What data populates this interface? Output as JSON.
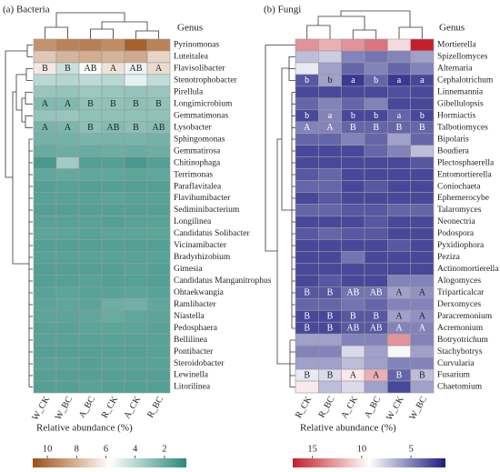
{
  "chart_data": [
    {
      "type": "heatmap",
      "title": "(a) Bacteria",
      "y_label": "Genus",
      "columns": [
        "W_CK",
        "W_BC",
        "A_BC",
        "R_CK",
        "A_CK",
        "R_BC"
      ],
      "rows": [
        "Pyrinomonas",
        "Luteitalea",
        "Flavisolibacter",
        "Stenotrophobacter",
        "Pirellula",
        "Longimicrobium",
        "Gemmatimonas",
        "Lysobacter",
        "Sphingomonas",
        "Gemmatirosa",
        "Chitinophaga",
        "Terrimonas",
        "Paraflavitalea",
        "Flavihumibacter",
        "Sediminibacterium",
        "Longilinea",
        "Candidatus Solibacter",
        "Vicinamibacter",
        "Bradyrhizobium",
        "Gimesia",
        "Candidatus Manganitrophus",
        "Ohtaekwangia",
        "Ramlibacter",
        "Niastella",
        "Pedosphaera",
        "Bellilinea",
        "Pontibacter",
        "Steroidobacter",
        "Lewinella",
        "Litorilinea"
      ],
      "values": [
        [
          9,
          9.5,
          9.6,
          9.2,
          10.5,
          9.5
        ],
        [
          7.4,
          8,
          8.2,
          8,
          8.3,
          7
        ],
        [
          6.4,
          4.4,
          5.6,
          6.6,
          5.3,
          6.8
        ],
        [
          4,
          3.9,
          4.1,
          4,
          5.1,
          4.2
        ],
        [
          3.2,
          3.1,
          3.3,
          3.2,
          3.1,
          3.2
        ],
        [
          2.6,
          2.6,
          3,
          3,
          2.9,
          3
        ],
        [
          3.1,
          3.2,
          3,
          3,
          3,
          3
        ],
        [
          2.4,
          2.5,
          2.9,
          2.7,
          2.9,
          2.8
        ],
        [
          2.3,
          2.3,
          2.4,
          2.4,
          2.4,
          2.3
        ],
        [
          2,
          2.1,
          2,
          2.1,
          2,
          2.1
        ],
        [
          1.2,
          3.4,
          1.5,
          1.5,
          1.2,
          1.5
        ],
        [
          1.8,
          1.9,
          1.8,
          1.8,
          1.7,
          1.8
        ],
        [
          1.5,
          1.6,
          1.5,
          1.5,
          1.5,
          1.5
        ],
        [
          1.6,
          1.6,
          1.6,
          1.7,
          1.6,
          1.6
        ],
        [
          1.5,
          1.5,
          1.5,
          1.5,
          1.5,
          1.5
        ],
        [
          1.6,
          1.6,
          1.6,
          1.5,
          1.6,
          1.6
        ],
        [
          1.7,
          1.7,
          1.6,
          1.7,
          1.7,
          1.7
        ],
        [
          1.5,
          1.5,
          1.5,
          1.5,
          1.5,
          1.5
        ],
        [
          1.6,
          1.6,
          1.6,
          1.6,
          1.6,
          1.6
        ],
        [
          1.5,
          1.5,
          1.5,
          1.5,
          1.6,
          1.5
        ],
        [
          1.5,
          1.5,
          1.6,
          1.5,
          1.5,
          1.5
        ],
        [
          1.6,
          1.7,
          1.6,
          1.6,
          1.7,
          1.6
        ],
        [
          1.7,
          1.8,
          1.7,
          2.1,
          2.2,
          1.8
        ],
        [
          1.7,
          1.7,
          1.8,
          2,
          1.8,
          1.7
        ],
        [
          1.6,
          1.6,
          1.7,
          1.7,
          1.7,
          1.6
        ],
        [
          1.6,
          1.6,
          1.6,
          1.6,
          1.6,
          1.6
        ],
        [
          1.5,
          1.5,
          1.5,
          1.5,
          1.5,
          1.6
        ],
        [
          1.6,
          1.6,
          1.5,
          1.6,
          1.6,
          1.6
        ],
        [
          1.5,
          1.5,
          1.5,
          1.5,
          1.5,
          1.5
        ],
        [
          1.5,
          1.5,
          1.6,
          1.5,
          1.5,
          1.5
        ]
      ],
      "annotations": [
        null,
        null,
        [
          "B",
          "B",
          "AB",
          "A",
          "AB",
          "A"
        ],
        null,
        null,
        [
          "A",
          "A",
          "B",
          "B",
          "B",
          "B"
        ],
        null,
        [
          "A",
          "A",
          "B",
          "AB",
          "B",
          "AB"
        ],
        null,
        null,
        null,
        null,
        null,
        null,
        null,
        null,
        null,
        null,
        null,
        null,
        null,
        null,
        null,
        null,
        null,
        null,
        null,
        null,
        null,
        null
      ],
      "colorbar_label": "Relative abundance (%)",
      "clim": [
        11,
        0.5
      ],
      "cticks": [
        10,
        8,
        6,
        4,
        2
      ],
      "colors": [
        "#9e5016",
        "#ffffff",
        "#2b8a7b"
      ]
    },
    {
      "type": "heatmap",
      "title": "(b) Fungi",
      "y_label": "Genus",
      "columns": [
        "R_CK",
        "R_BC",
        "A_CK",
        "A_BC",
        "W_CK",
        "W_BC"
      ],
      "rows": [
        "Mortierella",
        "Spizellomyces",
        "Alternaria",
        "Cephalotrichum",
        "Linnemannia",
        "Gibellulopsis",
        "Hormiactis",
        "Talbotiomyces",
        "Bipolaris",
        "Boudiera",
        "Plectosphaerella",
        "Entomortierella",
        "Coniochaeta",
        "Ephemerocybe",
        "Talaromyces",
        "Neonectria",
        "Podospora",
        "Pyxidiophora",
        "Peziza",
        "Actinomortierella",
        "Alogomyces",
        "Triparticalcar",
        "Derxomyces",
        "Paracremonium",
        "Acremonium",
        "Botryotrichum",
        "Stachybotrys",
        "Curvularia",
        "Fusarium",
        "Chaetomium"
      ],
      "values": [
        [
          13,
          12,
          13,
          14,
          10.5,
          17
        ],
        [
          7,
          7.5,
          5,
          4.5,
          5,
          6
        ],
        [
          8.5,
          6,
          4,
          5,
          4,
          5
        ],
        [
          3.5,
          6,
          2.5,
          4,
          2.5,
          3
        ],
        [
          3,
          3,
          3,
          3,
          3.2,
          3
        ],
        [
          4,
          5,
          4,
          5,
          3,
          3
        ],
        [
          3,
          5,
          3,
          3,
          4,
          3
        ],
        [
          5,
          5,
          4,
          4,
          4,
          4
        ],
        [
          4,
          4,
          5,
          4,
          6,
          4
        ],
        [
          3,
          3,
          3,
          4,
          5,
          7
        ],
        [
          3,
          3,
          3,
          3,
          3,
          3.5
        ],
        [
          3.5,
          4,
          3,
          3,
          3,
          3
        ],
        [
          4,
          4,
          3,
          3.5,
          3,
          3
        ],
        [
          3,
          3.5,
          3,
          3,
          3,
          3
        ],
        [
          4,
          4,
          3.5,
          3.5,
          4,
          4
        ],
        [
          3,
          3,
          3,
          3.5,
          3,
          3
        ],
        [
          3.5,
          4,
          3.5,
          3.5,
          3,
          3
        ],
        [
          3,
          3,
          3,
          3,
          3.5,
          3
        ],
        [
          3,
          3,
          4.5,
          3,
          3,
          3
        ],
        [
          3,
          3,
          3,
          3,
          3,
          3
        ],
        [
          3,
          3.5,
          3,
          3,
          5,
          5
        ],
        [
          3.5,
          3.5,
          4.5,
          4.5,
          6,
          5.5
        ],
        [
          4,
          4,
          4.5,
          4,
          5,
          5
        ],
        [
          3,
          3,
          3.5,
          3.5,
          6,
          5.5
        ],
        [
          3,
          3,
          3.5,
          3.5,
          5,
          5
        ],
        [
          6,
          6,
          5,
          5,
          13,
          5
        ],
        [
          5,
          5,
          8,
          6,
          9,
          6
        ],
        [
          6,
          6,
          7,
          6,
          5,
          5
        ],
        [
          8.5,
          8,
          10,
          12,
          4,
          7
        ],
        [
          10,
          7,
          8,
          6,
          3,
          6
        ]
      ],
      "annotations": [
        null,
        null,
        null,
        [
          "b",
          "b",
          "a",
          "b",
          "a",
          "a"
        ],
        null,
        null,
        [
          "b",
          "a",
          "b",
          "b",
          "a",
          "b"
        ],
        [
          "A",
          "A",
          "B",
          "B",
          "B",
          "B"
        ],
        null,
        null,
        null,
        null,
        null,
        null,
        null,
        null,
        null,
        null,
        null,
        null,
        null,
        [
          "B",
          "B",
          "AB",
          "AB",
          "A",
          "A"
        ],
        null,
        [
          "B",
          "B",
          "B",
          "B",
          "A",
          "A"
        ],
        [
          "B",
          "B",
          "AB",
          "AB",
          "A",
          "A"
        ],
        null,
        null,
        null,
        [
          "B",
          "B",
          "A",
          "A",
          "B",
          "B"
        ],
        null
      ],
      "colorbar_label": "Relative abundance (%)",
      "clim": [
        17,
        1.5
      ],
      "cticks": [
        15,
        10,
        5
      ],
      "colors": [
        "#c4202c",
        "#ffffff",
        "#1c1c82"
      ]
    }
  ]
}
